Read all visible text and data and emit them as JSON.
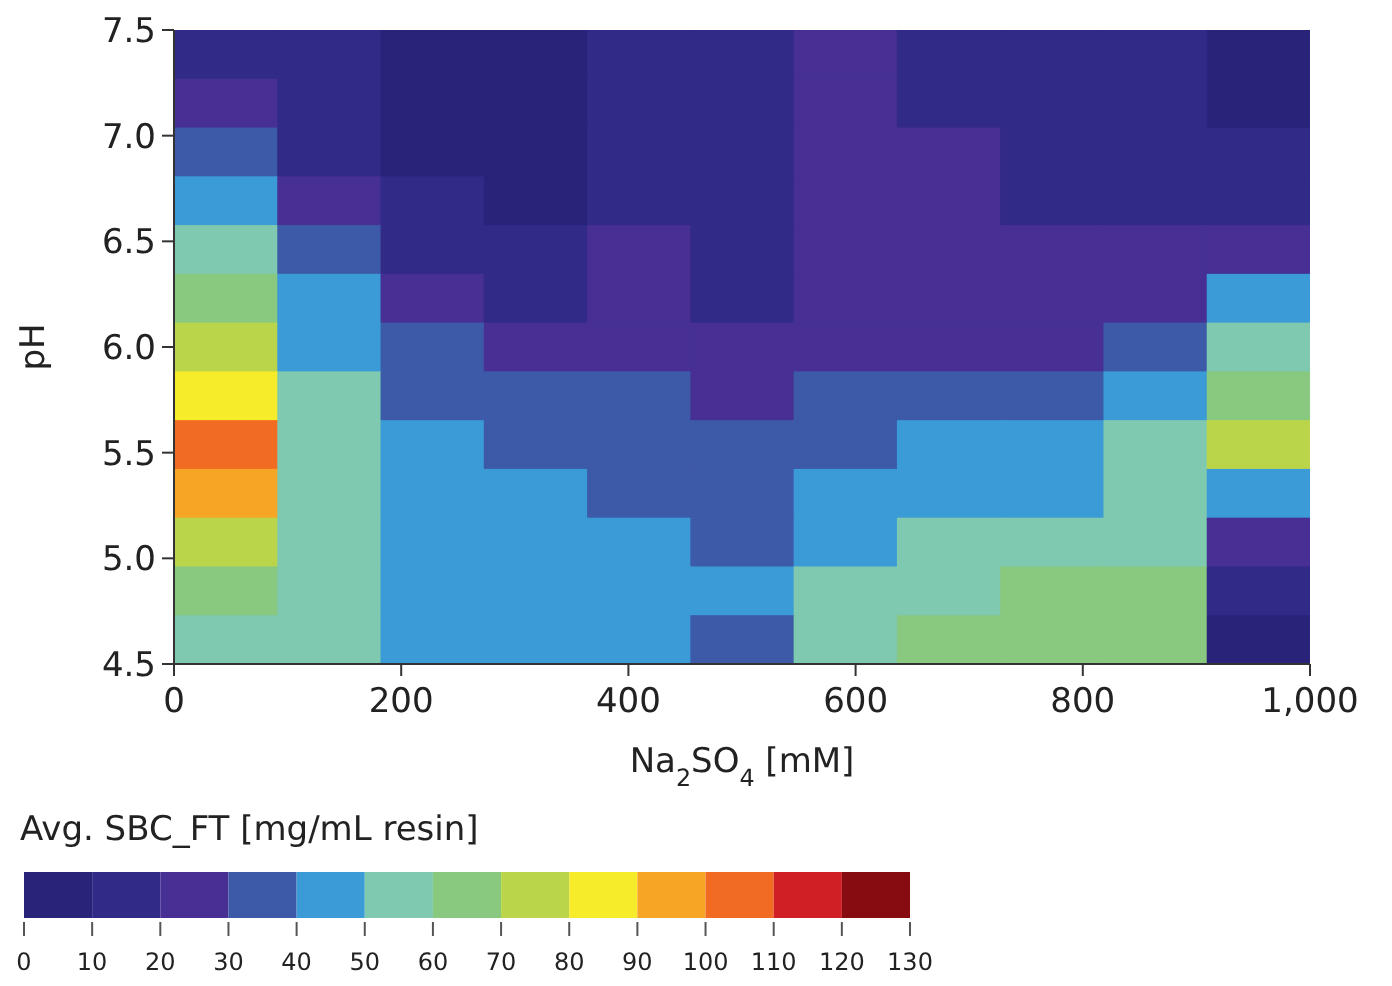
{
  "chart_data": {
    "type": "heatmap",
    "xlabel": "Na$_{2}$SO$_{4}$ [mM]",
    "ylabel": "pH",
    "clabel": "Avg. SBC_FT [mg/mL resin]",
    "xlim": [
      0,
      1000
    ],
    "ylim": [
      4.5,
      7.5
    ],
    "xticks": [
      0,
      200,
      400,
      600,
      800,
      {
        "value": 1000,
        "label": "1,000"
      }
    ],
    "yticks": [
      {
        "value": 4.5,
        "label": "4.5"
      },
      {
        "value": 5,
        "label": "5.0"
      },
      {
        "value": 5.5,
        "label": "5.5"
      },
      {
        "value": 6,
        "label": "6.0"
      },
      {
        "value": 6.5,
        "label": "6.5"
      },
      {
        "value": 7,
        "label": "7.0"
      },
      {
        "value": 7.5,
        "label": "7.5"
      }
    ],
    "clim": [
      0,
      130
    ],
    "cticks": [
      0,
      10,
      20,
      30,
      40,
      50,
      60,
      70,
      80,
      90,
      100,
      110,
      120,
      130
    ],
    "colors": [
      "#29237a",
      "#312a87",
      "#472f93",
      "#3d5aa8",
      "#3a9bd6",
      "#7fc9b0",
      "#88c87f",
      "#bbd54a",
      "#f6ec2a",
      "#f6a524",
      "#f26b23",
      "#d11f26",
      "#870c12"
    ],
    "cells": [
      [
        15,
        12,
        8,
        8,
        12,
        18,
        22,
        15,
        15,
        15,
        5
      ],
      [
        22,
        15,
        8,
        8,
        12,
        15,
        22,
        15,
        15,
        12,
        8
      ],
      [
        32,
        18,
        8,
        8,
        12,
        12,
        22,
        22,
        15,
        12,
        12
      ],
      [
        42,
        25,
        10,
        8,
        11,
        12,
        22,
        22,
        15,
        15,
        15
      ],
      [
        52,
        32,
        15,
        10,
        21,
        12,
        22,
        22,
        21,
        21,
        28
      ],
      [
        62,
        42,
        22,
        18,
        23,
        18,
        22,
        22,
        22,
        28,
        40
      ],
      [
        75,
        48,
        30,
        25,
        27,
        22,
        25,
        27,
        27,
        38,
        55
      ],
      [
        88,
        55,
        38,
        32,
        30,
        28,
        30,
        35,
        35,
        48,
        65
      ],
      [
        105,
        58,
        42,
        36,
        33,
        33,
        35,
        42,
        42,
        55,
        72
      ],
      [
        95,
        58,
        46,
        42,
        37,
        35,
        40,
        48,
        48,
        58,
        45
      ],
      [
        78,
        55,
        48,
        45,
        40,
        38,
        46,
        52,
        55,
        56,
        25
      ],
      [
        65,
        55,
        48,
        45,
        42,
        43,
        52,
        58,
        62,
        60,
        12
      ],
      [
        55,
        52,
        48,
        45,
        44,
        38,
        56,
        62,
        66,
        62,
        5
      ]
    ]
  }
}
